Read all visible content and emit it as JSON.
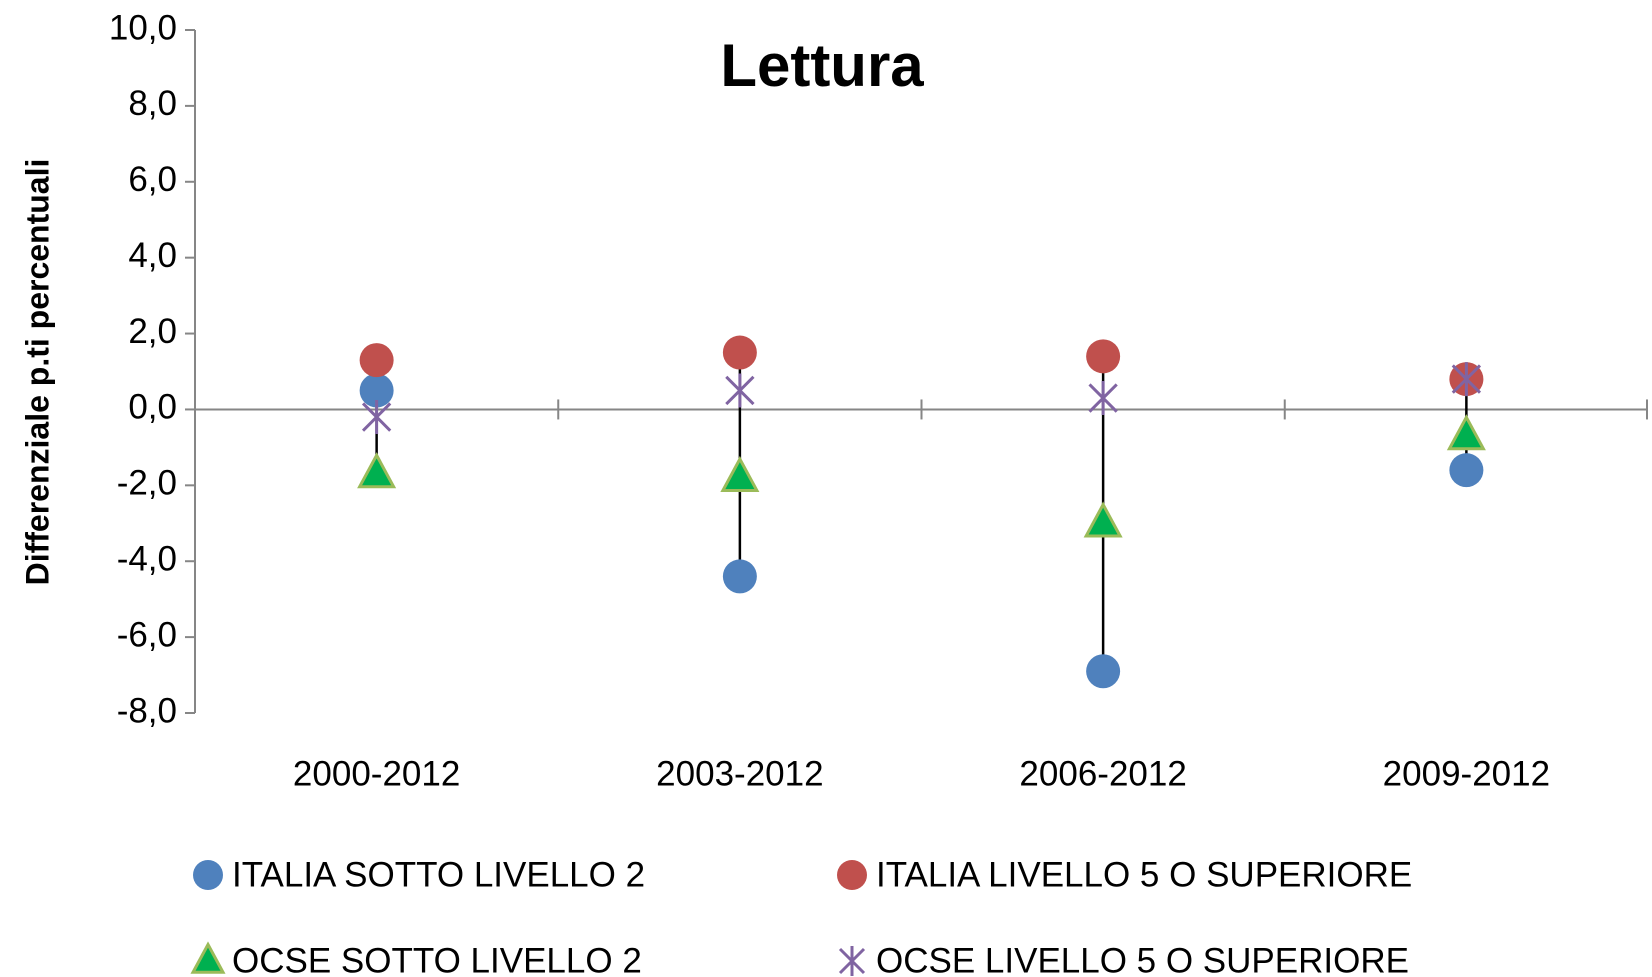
{
  "chart_data": {
    "type": "scatter",
    "title": "Lettura",
    "y_label": "Differenziale  p.ti percentuali",
    "categories": [
      "2000-2012",
      "2003-2012",
      "2006-2012",
      "2009-2012"
    ],
    "series": [
      {
        "name": "ITALIA SOTTO  LIVELLO 2",
        "color": "#4f81bd",
        "marker": "circle",
        "values": [
          0.5,
          -4.4,
          -6.9,
          -1.6
        ]
      },
      {
        "name": "ITALIA LIVELLO 5 O SUPERIORE",
        "color": "#c0504d",
        "marker": "circle",
        "values": [
          1.3,
          1.5,
          1.4,
          0.8
        ]
      },
      {
        "name": "OCSE SOTTO LIVELLO 2",
        "color": "#00b050",
        "marker": "triangle",
        "values": [
          -1.7,
          -1.8,
          -3.0,
          -0.7
        ]
      },
      {
        "name": "OCSE LIVELLO 5 O SUPERIORE",
        "color": "#8064a2",
        "marker": "star",
        "values": [
          -0.2,
          0.5,
          0.3,
          0.8
        ]
      }
    ],
    "ylim": [
      -8,
      10
    ],
    "yticks": [
      {
        "value": -8,
        "label": "-8,0"
      },
      {
        "value": -6,
        "label": "-6,0"
      },
      {
        "value": -4,
        "label": "-4,0"
      },
      {
        "value": -2,
        "label": "-2,0"
      },
      {
        "value": 0,
        "label": "0,0"
      },
      {
        "value": 2,
        "label": "2,0"
      },
      {
        "value": 4,
        "label": "4,0"
      },
      {
        "value": 6,
        "label": "6,0"
      },
      {
        "value": 8,
        "label": "8,0"
      },
      {
        "value": 10,
        "label": "10,0"
      }
    ],
    "high_low_lines": true,
    "legend": "bottom"
  }
}
